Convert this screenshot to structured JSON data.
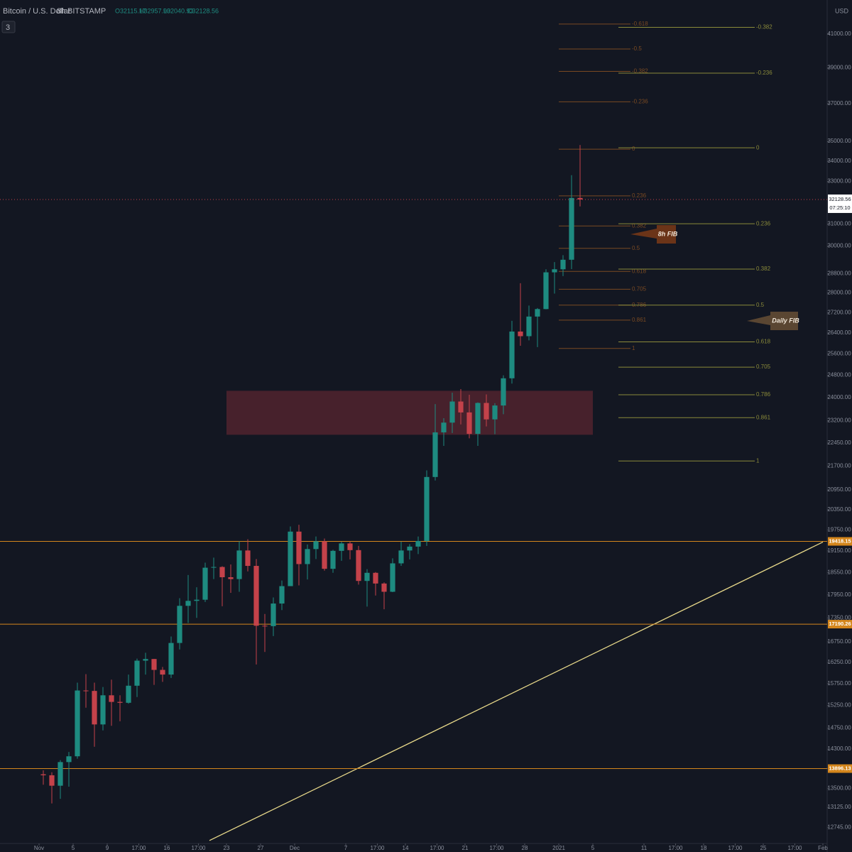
{
  "chart_data": {
    "type": "candlestick",
    "title": "Bitcoin / U.S. Dollar",
    "interval": "8h",
    "exchange": "BITSTAMP",
    "ohlc_legend": [
      "O32115.17",
      "H32957.90",
      "L32040.93",
      "C32128.56"
    ],
    "indicator_count": 3,
    "currency": "USD",
    "log_scale": true,
    "up_color": "#1e8b80",
    "down_color": "#c4424a",
    "x": [
      "2020-11-01",
      "2020-11-02",
      "2020-11-03",
      "2020-11-04",
      "2020-11-05",
      "2020-11-06",
      "2020-11-07",
      "2020-11-08",
      "2020-11-09",
      "2020-11-10",
      "2020-11-11",
      "2020-11-12",
      "2020-11-13",
      "2020-11-14",
      "2020-11-15",
      "2020-11-16",
      "2020-11-17",
      "2020-11-18",
      "2020-11-19",
      "2020-11-20",
      "2020-11-21",
      "2020-11-22",
      "2020-11-23",
      "2020-11-24",
      "2020-11-25",
      "2020-11-26",
      "2020-11-27",
      "2020-11-28",
      "2020-11-29",
      "2020-11-30",
      "2020-12-01",
      "2020-12-02",
      "2020-12-03",
      "2020-12-04",
      "2020-12-05",
      "2020-12-06",
      "2020-12-07",
      "2020-12-08",
      "2020-12-09",
      "2020-12-10",
      "2020-12-11",
      "2020-12-12",
      "2020-12-13",
      "2020-12-14",
      "2020-12-15",
      "2020-12-16",
      "2020-12-17",
      "2020-12-18",
      "2020-12-19",
      "2020-12-20",
      "2020-12-21",
      "2020-12-22",
      "2020-12-23",
      "2020-12-24",
      "2020-12-25",
      "2020-12-26",
      "2020-12-27",
      "2020-12-28",
      "2020-12-29",
      "2020-12-30",
      "2020-12-31",
      "2021-01-01",
      "2021-01-02",
      "2021-01-03"
    ],
    "open": [
      13780,
      13760,
      13550,
      14030,
      14150,
      15590,
      15580,
      14830,
      15480,
      15330,
      15310,
      15700,
      16290,
      16330,
      16070,
      15960,
      16720,
      17660,
      17790,
      17820,
      18680,
      18700,
      18420,
      18370,
      19160,
      18730,
      17150,
      17140,
      17720,
      18180,
      19700,
      18780,
      19200,
      19420,
      18650,
      19150,
      19360,
      19170,
      18320,
      18540,
      18250,
      18030,
      18800,
      19160,
      19270,
      19430,
      21350,
      22800,
      23130,
      23860,
      23480,
      22750,
      23810,
      23240,
      23720,
      24690,
      26450,
      26270,
      27040,
      27340,
      28860,
      28990,
      29400,
      32200
    ],
    "high": [
      13860,
      13820,
      14070,
      14240,
      15770,
      15970,
      15770,
      15670,
      15840,
      15480,
      15960,
      16340,
      16480,
      16330,
      16140,
      16880,
      17860,
      18480,
      18150,
      18820,
      18960,
      18720,
      18770,
      19420,
      19480,
      18920,
      17450,
      17880,
      18330,
      19850,
      19900,
      19330,
      19560,
      19500,
      19180,
      19410,
      19420,
      19290,
      18640,
      18560,
      18280,
      18940,
      19410,
      19340,
      19560,
      21560,
      23770,
      23280,
      24170,
      24300,
      24100,
      23830,
      24110,
      23800,
      24800,
      26870,
      28400,
      27480,
      27380,
      28990,
      29300,
      29600,
      33300,
      34810
    ],
    "low": [
      13570,
      13200,
      13290,
      13530,
      14100,
      15200,
      14350,
      14700,
      14800,
      14900,
      15290,
      15440,
      15960,
      15720,
      15790,
      15880,
      16560,
      17220,
      17350,
      17760,
      18370,
      17650,
      18000,
      18030,
      18580,
      16200,
      16500,
      16890,
      17550,
      18180,
      18200,
      18360,
      18920,
      18600,
      18540,
      18870,
      18910,
      18220,
      17640,
      17930,
      17570,
      18020,
      18730,
      18910,
      19060,
      19290,
      21240,
      22350,
      22780,
      23070,
      22600,
      22350,
      23000,
      22740,
      23420,
      24500,
      25900,
      26110,
      25850,
      27330,
      27970,
      28700,
      29000,
      31800
    ],
    "close": [
      13760,
      13550,
      14030,
      14150,
      15590,
      15580,
      14830,
      15480,
      15330,
      15310,
      15700,
      16290,
      16330,
      16070,
      15960,
      16720,
      17660,
      17790,
      17820,
      18680,
      18700,
      18420,
      18370,
      19160,
      18730,
      17150,
      17140,
      17720,
      18180,
      19700,
      18780,
      19200,
      19420,
      18650,
      19150,
      19360,
      19170,
      18320,
      18540,
      18250,
      18030,
      18800,
      19160,
      19270,
      19430,
      21350,
      22800,
      23130,
      23860,
      23480,
      22750,
      23810,
      23240,
      23720,
      24690,
      26450,
      26270,
      27040,
      27340,
      28860,
      28990,
      29400,
      32200,
      32128.56
    ],
    "xlim": [
      "2020-10-27T10:00Z",
      "2021-02-01T12:00Z"
    ],
    "xticks": [
      {
        "value": "2020-11-01",
        "label": "Nov"
      },
      {
        "value": "2020-11-05",
        "label": "5"
      },
      {
        "value": "2020-11-09",
        "label": "9"
      },
      {
        "value": "2020-11-12T17:00Z",
        "label": "17:00"
      },
      {
        "value": "2020-11-16",
        "label": "16"
      },
      {
        "value": "2020-11-19T17:00Z",
        "label": "17:00"
      },
      {
        "value": "2020-11-23",
        "label": "23"
      },
      {
        "value": "2020-11-27",
        "label": "27"
      },
      {
        "value": "2020-12-01",
        "label": "Dec"
      },
      {
        "value": "2020-12-07",
        "label": "7"
      },
      {
        "value": "2020-12-10T17:00Z",
        "label": "17:00"
      },
      {
        "value": "2020-12-14",
        "label": "14"
      },
      {
        "value": "2020-12-17T17:00Z",
        "label": "17:00"
      },
      {
        "value": "2020-12-21",
        "label": "21"
      },
      {
        "value": "2020-12-24T17:00Z",
        "label": "17:00"
      },
      {
        "value": "2020-12-28",
        "label": "28"
      },
      {
        "value": "2021-01-01",
        "label": "2021"
      },
      {
        "value": "2021-01-05",
        "label": "5"
      },
      {
        "value": "2021-01-11",
        "label": "11"
      },
      {
        "value": "2021-01-14T17:00Z",
        "label": "17:00"
      },
      {
        "value": "2021-01-18",
        "label": "18"
      },
      {
        "value": "2021-01-21T17:00Z",
        "label": "17:00"
      },
      {
        "value": "2021-01-25",
        "label": "25"
      },
      {
        "value": "2021-01-28T17:00Z",
        "label": "17:00"
      },
      {
        "value": "2021-02-01",
        "label": "Feb"
      }
    ],
    "ylim": [
      12445,
      43100
    ],
    "yticks": [
      {
        "value": 41000,
        "label": "41000.00"
      },
      {
        "value": 39000,
        "label": "39000.00"
      },
      {
        "value": 37000,
        "label": "37000.00"
      },
      {
        "value": 35000,
        "label": "35000.00"
      },
      {
        "value": 34000,
        "label": "34000.00"
      },
      {
        "value": 33000,
        "label": "33000.00"
      },
      {
        "value": 31000,
        "label": "31000.00"
      },
      {
        "value": 30000,
        "label": "30000.00"
      },
      {
        "value": 28800,
        "label": "28800.00"
      },
      {
        "value": 28000,
        "label": "28000.00"
      },
      {
        "value": 27200,
        "label": "27200.00"
      },
      {
        "value": 26400,
        "label": "26400.00"
      },
      {
        "value": 25600,
        "label": "25600.00"
      },
      {
        "value": 24800,
        "label": "24800.00"
      },
      {
        "value": 24000,
        "label": "24000.00"
      },
      {
        "value": 23200,
        "label": "23200.00"
      },
      {
        "value": 22450,
        "label": "22450.00"
      },
      {
        "value": 21700,
        "label": "21700.00"
      },
      {
        "value": 20950,
        "label": "20950.00"
      },
      {
        "value": 20350,
        "label": "20350.00"
      },
      {
        "value": 19750,
        "label": "19750.00"
      },
      {
        "value": 19150,
        "label": "19150.00"
      },
      {
        "value": 18550,
        "label": "18550.00"
      },
      {
        "value": 17950,
        "label": "17950.00"
      },
      {
        "value": 17350,
        "label": "17350.00"
      },
      {
        "value": 16750,
        "label": "16750.00"
      },
      {
        "value": 16250,
        "label": "16250.00"
      },
      {
        "value": 15750,
        "label": "15750.00"
      },
      {
        "value": 15250,
        "label": "15250.00"
      },
      {
        "value": 14750,
        "label": "14750.00"
      },
      {
        "value": 14300,
        "label": "14300.00"
      },
      {
        "value": 13900,
        "label": "13900.00"
      },
      {
        "value": 13500,
        "label": "13500.00"
      },
      {
        "value": 13125,
        "label": "13125.00"
      },
      {
        "value": 12745,
        "label": "12745.00"
      }
    ],
    "last_price": 32128.56,
    "countdown": "07:25:10",
    "levels": [
      19418.15,
      17190.26,
      13896.13
    ],
    "level_color": "#d4861c",
    "zone": {
      "xlim": [
        "2020-11-23",
        "2021-01-05"
      ],
      "ylim": [
        22720,
        24240
      ],
      "color": "#5a2530"
    },
    "trendline": {
      "x": [
        "2020-11-21",
        "2021-02-01"
      ],
      "values": [
        12500,
        19400
      ],
      "color": "#e8d98a"
    },
    "fibs": [
      {
        "label": "8h FIB",
        "color": "#7a4a22",
        "xlim": [
          "2021-01-01",
          "2021-01-09T10:00Z"
        ],
        "levels": [
          {
            "value": 41600,
            "label": "-0.618"
          },
          {
            "value": 40100,
            "label": "-0.5"
          },
          {
            "value": 38800,
            "label": "-0.382"
          },
          {
            "value": 37100,
            "label": "-0.236"
          },
          {
            "value": 34600,
            "label": "0"
          },
          {
            "value": 32300,
            "label": "0.236"
          },
          {
            "value": 30900,
            "label": "0.382"
          },
          {
            "value": 29900,
            "label": "0.5"
          },
          {
            "value": 28900,
            "label": "0.618"
          },
          {
            "value": 28150,
            "label": "0.705"
          },
          {
            "value": 27500,
            "label": "0.786"
          },
          {
            "value": 26900,
            "label": "0.861"
          },
          {
            "value": 25800,
            "label": "1"
          }
        ]
      },
      {
        "label": "Daily FIB",
        "color": "#8a8a3a",
        "xlim": [
          "2021-01-08",
          "2021-01-24"
        ],
        "levels": [
          {
            "value": 41400,
            "label": "-0.382"
          },
          {
            "value": 38700,
            "label": "-0.236"
          },
          {
            "value": 34670,
            "label": "0"
          },
          {
            "value": 31000,
            "label": "0.236"
          },
          {
            "value": 29000,
            "label": "0.382"
          },
          {
            "value": 27500,
            "label": "0.5"
          },
          {
            "value": 26050,
            "label": "0.618"
          },
          {
            "value": 25100,
            "label": "0.705"
          },
          {
            "value": 24100,
            "label": "0.786"
          },
          {
            "value": 23300,
            "label": "0.861"
          },
          {
            "value": 21860,
            "label": "1"
          }
        ]
      }
    ]
  }
}
